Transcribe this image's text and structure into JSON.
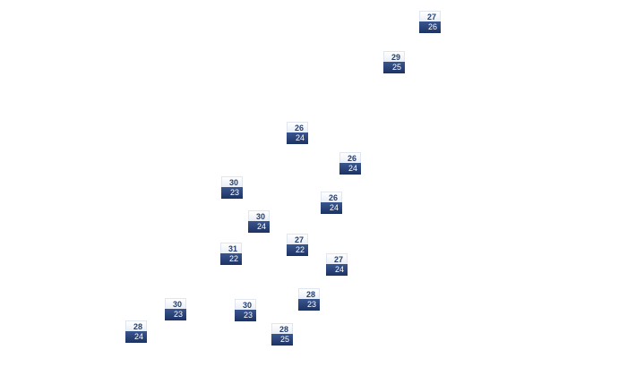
{
  "markers": [
    {
      "high": "27",
      "low": "26"
    },
    {
      "high": "29",
      "low": "25"
    },
    {
      "high": "26",
      "low": "24"
    },
    {
      "high": "26",
      "low": "24"
    },
    {
      "high": "30",
      "low": "23"
    },
    {
      "high": "26",
      "low": "24"
    },
    {
      "high": "30",
      "low": "24"
    },
    {
      "high": "27",
      "low": "22"
    },
    {
      "high": "31",
      "low": "22"
    },
    {
      "high": "27",
      "low": "24"
    },
    {
      "high": "28",
      "low": "23"
    },
    {
      "high": "30",
      "low": "23"
    },
    {
      "high": "30",
      "low": "23"
    },
    {
      "high": "28",
      "low": "24"
    },
    {
      "high": "28",
      "low": "25"
    }
  ],
  "colors": {
    "high_text": "#26406e",
    "low_bg": "#2a457a",
    "low_text": "#ffffff"
  }
}
